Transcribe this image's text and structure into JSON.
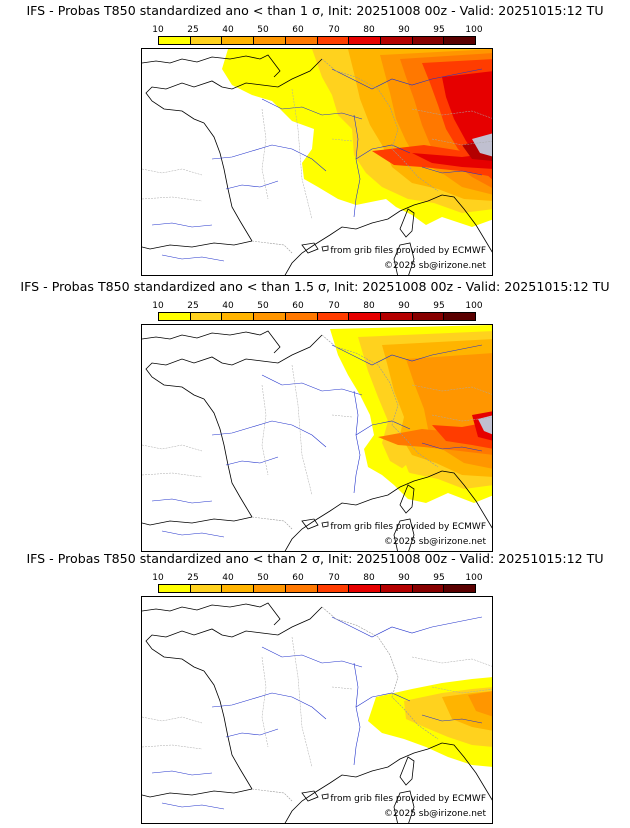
{
  "legend": {
    "ticks": [
      "10",
      "25",
      "40",
      "50",
      "60",
      "70",
      "80",
      "90",
      "95",
      "100"
    ],
    "colors": [
      "#ffff00",
      "#ffd21e",
      "#ffb400",
      "#ff9600",
      "#ff7800",
      "#ff3c00",
      "#e60000",
      "#b40000",
      "#870000",
      "#5a0000"
    ]
  },
  "panels": [
    {
      "title": "IFS - Probas T850  standardized ano < than 1 σ, Init: 20251008 00z - Valid: 20251015:12 TU",
      "credit": "from grib files provided by ECMWF",
      "copyright": "©2025 sb@irizone.net"
    },
    {
      "title": "IFS - Probas T850  standardized ano < than 1.5 σ, Init: 20251008 00z - Valid: 20251015:12 TU",
      "credit": "from grib files provided by ECMWF",
      "copyright": "©2025 sb@irizone.net"
    },
    {
      "title": "IFS - Probas T850  standardized ano < than 2 σ, Init: 20251008 00z - Valid: 20251015:12 TU",
      "credit": "from grib files provided by ECMWF",
      "copyright": "©2025 sb@irizone.net"
    }
  ],
  "colors": {
    "coast": "#000000",
    "rivers": "#2233cc",
    "borders": "#999999"
  }
}
